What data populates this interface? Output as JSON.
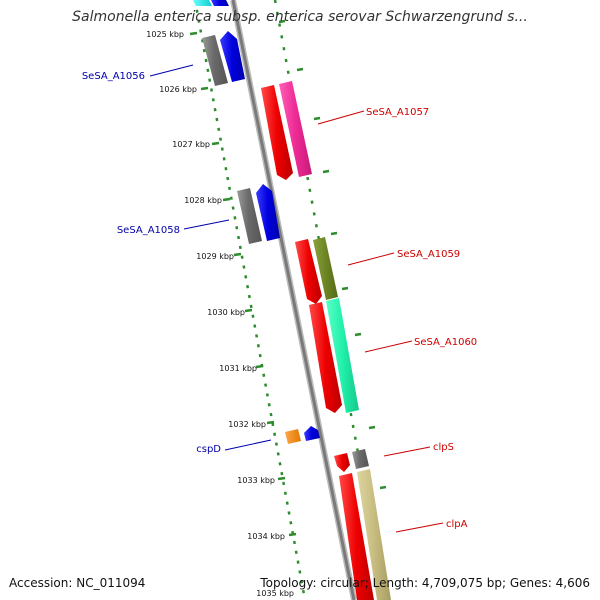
{
  "title": "Salmonella enterica subsp. enterica serovar Schwarzengrund s...",
  "footer": {
    "accession": "Accession: NC_011094",
    "topology": "Topology: circular; Length: 4,709,075 bp; Genes: 4,606"
  },
  "ticks": [
    "1025 kbp",
    "1026 kbp",
    "1027 kbp",
    "1028 kbp",
    "1029 kbp",
    "1030 kbp",
    "1031 kbp",
    "1032 kbp",
    "1033 kbp",
    "1034 kbp",
    "1035 kbp"
  ],
  "labels": {
    "a1056": "SeSA_A1056",
    "a1057": "SeSA_A1057",
    "a1058": "SeSA_A1058",
    "a1059": "SeSA_A1059",
    "a1060": "SeSA_A1060",
    "cspD": "cspD",
    "clpS": "clpS",
    "clpA": "clpA"
  },
  "colors": {
    "reverse_label": "#0000aa",
    "forward_label": "#cc0000",
    "tick_green": "#2e8b2e",
    "backbone": "#888888"
  }
}
